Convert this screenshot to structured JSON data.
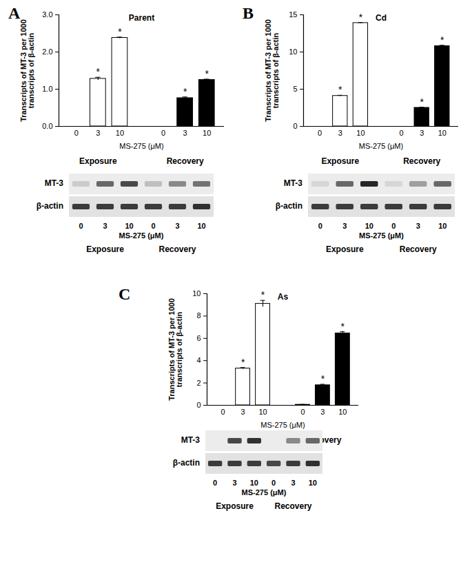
{
  "chart_data": [
    {
      "type": "bar",
      "panel": "A",
      "title": "Parent",
      "y_label": "Transcripts of MT-3 per 1000 transcripts of β-actin",
      "x_label": "MS-275 (μM)",
      "categories": [
        "0",
        "3",
        "10",
        "0",
        "3",
        "10"
      ],
      "group_labels": [
        "Exposure",
        "Exposure",
        "Exposure",
        "Recovery",
        "Recovery",
        "Recovery"
      ],
      "values": [
        0,
        1.28,
        2.38,
        0,
        0.76,
        1.25
      ],
      "errors": [
        0,
        0.04,
        0.02,
        0,
        0.03,
        0.02
      ],
      "annotations": [
        null,
        "*",
        "*",
        null,
        "*",
        "*"
      ],
      "colors": [
        "#ffffff",
        "#ffffff",
        "#ffffff",
        "#000000",
        "#000000",
        "#000000"
      ],
      "ylim": [
        0,
        3
      ],
      "yticks": [
        0,
        1,
        2,
        3
      ],
      "gel": {
        "rows": [
          {
            "label": "MT-3",
            "bands": [
              0.15,
              0.6,
              0.75,
              0.2,
              0.45,
              0.55
            ]
          },
          {
            "label": "β-actin",
            "bands": [
              0.8,
              0.8,
              0.8,
              0.8,
              0.8,
              0.85
            ]
          }
        ],
        "lanes": [
          "0",
          "3",
          "10",
          "0",
          "3",
          "10"
        ],
        "x_label": "MS-275 (μM)",
        "group_labels": [
          "Exposure",
          "Exposure",
          "Exposure",
          "Recovery",
          "Recovery",
          "Recovery"
        ]
      }
    },
    {
      "type": "bar",
      "panel": "B",
      "title": "Cd",
      "y_label": "Transcripts of MT-3 per 1000 transcripts of β-actin",
      "x_label": "MS-275 (μM)",
      "categories": [
        "0",
        "3",
        "10",
        "0",
        "3",
        "10"
      ],
      "group_labels": [
        "Exposure",
        "Exposure",
        "Exposure",
        "Recovery",
        "Recovery",
        "Recovery"
      ],
      "values": [
        0,
        4.1,
        13.9,
        0,
        2.5,
        10.8
      ],
      "errors": [
        0,
        0.08,
        0.05,
        0,
        0.08,
        0.1
      ],
      "annotations": [
        null,
        "*",
        "*",
        null,
        "*",
        "*"
      ],
      "colors": [
        "#ffffff",
        "#ffffff",
        "#ffffff",
        "#000000",
        "#000000",
        "#000000"
      ],
      "ylim": [
        0,
        15
      ],
      "yticks": [
        0,
        5,
        10,
        15
      ],
      "gel": {
        "rows": [
          {
            "label": "MT-3",
            "bands": [
              0.1,
              0.6,
              0.9,
              0.1,
              0.35,
              0.6
            ]
          },
          {
            "label": "β-actin",
            "bands": [
              0.8,
              0.8,
              0.8,
              0.8,
              0.8,
              0.8
            ]
          }
        ],
        "lanes": [
          "0",
          "3",
          "10",
          "0",
          "3",
          "10"
        ],
        "x_label": "MS-275 (μM)",
        "group_labels": [
          "Exposure",
          "Exposure",
          "Exposure",
          "Recovery",
          "Recovery",
          "Recovery"
        ]
      }
    },
    {
      "type": "bar",
      "panel": "C",
      "title": "As",
      "y_label": "Transcripts of MT-3 per 1000 transcripts of β-actin",
      "x_label": "MS-275 (μM)",
      "categories": [
        "0",
        "3",
        "10",
        "0",
        "3",
        "10"
      ],
      "group_labels": [
        "Exposure",
        "Exposure",
        "Exposure",
        "Recovery",
        "Recovery",
        "Recovery"
      ],
      "values": [
        0,
        3.3,
        9.1,
        0.05,
        1.8,
        6.45
      ],
      "errors": [
        0,
        0.08,
        0.3,
        0.03,
        0.08,
        0.15
      ],
      "annotations": [
        null,
        "*",
        "*",
        null,
        "*",
        "*"
      ],
      "colors": [
        "#ffffff",
        "#ffffff",
        "#ffffff",
        "#000000",
        "#000000",
        "#000000"
      ],
      "ylim": [
        0,
        10
      ],
      "yticks": [
        0,
        2,
        4,
        6,
        8,
        10
      ],
      "gel": {
        "rows": [
          {
            "label": "MT-3",
            "bands": [
              0.0,
              0.75,
              0.85,
              0.0,
              0.45,
              0.6
            ]
          },
          {
            "label": "β-actin",
            "bands": [
              0.8,
              0.8,
              0.8,
              0.75,
              0.8,
              0.85
            ]
          }
        ],
        "lanes": [
          "0",
          "3",
          "10",
          "0",
          "3",
          "10"
        ],
        "x_label": "MS-275 (μM)",
        "group_labels": [
          "Exposure",
          "Exposure",
          "Exposure",
          "Recovery",
          "Recovery",
          "Recovery"
        ]
      }
    }
  ]
}
